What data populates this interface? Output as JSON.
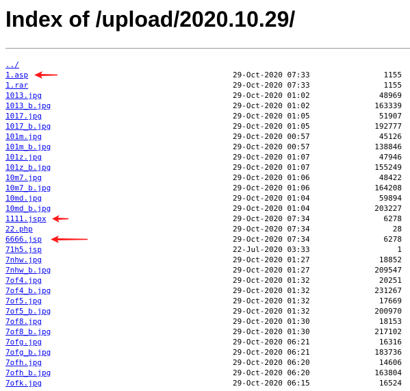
{
  "page": {
    "title": "Index of /upload/2020.10.29/"
  },
  "parent_link": "../",
  "colors": {
    "link": "#0000ee",
    "rule": "#9a9a9a",
    "arrow": "#ff1a1a"
  },
  "files": [
    {
      "name": "1.asp",
      "date": "29-Oct-2020 07:33",
      "size": "1155"
    },
    {
      "name": "1.rar",
      "date": "29-Oct-2020 07:33",
      "size": "1155"
    },
    {
      "name": "1013.jpg",
      "date": "29-Oct-2020 01:02",
      "size": "48969"
    },
    {
      "name": "1013_b.jpg",
      "date": "29-Oct-2020 01:02",
      "size": "163339"
    },
    {
      "name": "1017.jpg",
      "date": "29-Oct-2020 01:05",
      "size": "51907"
    },
    {
      "name": "1017_b.jpg",
      "date": "29-Oct-2020 01:05",
      "size": "192777"
    },
    {
      "name": "101m.jpg",
      "date": "29-Oct-2020 00:57",
      "size": "45126"
    },
    {
      "name": "101m_b.jpg",
      "date": "29-Oct-2020 00:57",
      "size": "138846"
    },
    {
      "name": "101z.jpg",
      "date": "29-Oct-2020 01:07",
      "size": "47946"
    },
    {
      "name": "101z_b.jpg",
      "date": "29-Oct-2020 01:07",
      "size": "155249"
    },
    {
      "name": "10m7.jpg",
      "date": "29-Oct-2020 01:06",
      "size": "48422"
    },
    {
      "name": "10m7_b.jpg",
      "date": "29-Oct-2020 01:06",
      "size": "164208"
    },
    {
      "name": "10md.jpg",
      "date": "29-Oct-2020 01:04",
      "size": "59894"
    },
    {
      "name": "10md_b.jpg",
      "date": "29-Oct-2020 01:04",
      "size": "203227"
    },
    {
      "name": "1111.jspx",
      "date": "29-Oct-2020 07:34",
      "size": "6278"
    },
    {
      "name": "22.php",
      "date": "29-Oct-2020 07:34",
      "size": "28"
    },
    {
      "name": "6666.jsp",
      "date": "29-Oct-2020 07:34",
      "size": "6278"
    },
    {
      "name": "71h5.jsp",
      "date": "22-Jul-2020 03:33",
      "size": "1"
    },
    {
      "name": "7nhw.jpg",
      "date": "29-Oct-2020 01:27",
      "size": "18852"
    },
    {
      "name": "7nhw_b.jpg",
      "date": "29-Oct-2020 01:27",
      "size": "209547"
    },
    {
      "name": "7of4.jpg",
      "date": "29-Oct-2020 01:32",
      "size": "20251"
    },
    {
      "name": "7of4_b.jpg",
      "date": "29-Oct-2020 01:32",
      "size": "231267"
    },
    {
      "name": "7of5.jpg",
      "date": "29-Oct-2020 01:32",
      "size": "17669"
    },
    {
      "name": "7of5_b.jpg",
      "date": "29-Oct-2020 01:32",
      "size": "200970"
    },
    {
      "name": "7of8.jpg",
      "date": "29-Oct-2020 01:30",
      "size": "18153"
    },
    {
      "name": "7of8_b.jpg",
      "date": "29-Oct-2020 01:30",
      "size": "217102"
    },
    {
      "name": "7ofg.jpg",
      "date": "29-Oct-2020 06:21",
      "size": "16316"
    },
    {
      "name": "7ofg_b.jpg",
      "date": "29-Oct-2020 06:21",
      "size": "183736"
    },
    {
      "name": "7ofh.jpg",
      "date": "29-Oct-2020 06:20",
      "size": "14606"
    },
    {
      "name": "7ofh_b.jpg",
      "date": "29-Oct-2020 06:20",
      "size": "163804"
    },
    {
      "name": "7ofk.jpg",
      "date": "29-Oct-2020 06:15",
      "size": "16524"
    }
  ],
  "annotations": [
    {
      "row": 0,
      "icon": "red-arrow-icon"
    },
    {
      "row": 14,
      "icon": "red-arrow-icon"
    },
    {
      "row": 16,
      "icon": "red-arrow-icon"
    }
  ]
}
